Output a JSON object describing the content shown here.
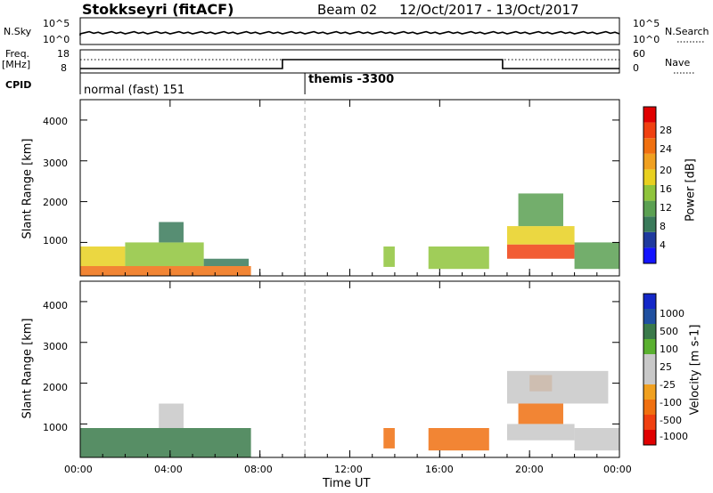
{
  "header": {
    "station": "Stokkseyri (fitACF)",
    "beam": "Beam 02",
    "date_range": "12/Oct/2017 - 13/Oct/2017"
  },
  "strip": {
    "nsky_label": "N.Sky",
    "nsky_ticks": [
      "10^5",
      "10^0"
    ],
    "nsearch_label": "N.Search",
    "nsearch_ticks": [
      "10^5",
      "10^0"
    ],
    "freq_label": "Freq.",
    "freq_unit": "[MHz]",
    "freq_ticks": [
      "18",
      "8"
    ],
    "nave_label": "Nave",
    "nave_ticks": [
      "60",
      "0"
    ],
    "cpid_label": "CPID",
    "cpid_segments": [
      {
        "label": "normal (fast) 151",
        "start_h": 0,
        "end_h": 10
      },
      {
        "label": "themis -3300",
        "start_h": 10,
        "end_h": 24
      }
    ]
  },
  "colors": {
    "power_scale": [
      "#1414ff",
      "#1f3a9e",
      "#3a7a5a",
      "#5ba052",
      "#8fc43c",
      "#e8d020",
      "#f0a020",
      "#f07010",
      "#f04010",
      "#e00000"
    ],
    "velocity_scale": [
      "#e00000",
      "#f04010",
      "#f07010",
      "#f0a020",
      "#c8c8c8",
      "#c8c8c8",
      "#5ab030",
      "#3a7a4a",
      "#2050a0",
      "#1428c8"
    ]
  },
  "chart_data": [
    {
      "type": "heatmap",
      "name": "power",
      "ylabel": "Slant Range [km]",
      "xlabel": "",
      "y_ticks": [
        "1000",
        "2000",
        "3000",
        "4000"
      ],
      "ylim": [
        180,
        4500
      ],
      "colorbar_label": "Power [dB]",
      "colorbar_ticks": [
        "4",
        "8",
        "12",
        "16",
        "20",
        "24",
        "28"
      ],
      "colorbar_range": [
        0,
        30
      ],
      "events": [
        {
          "t0": 0.0,
          "t1": 7.6,
          "r0": 180,
          "r1": 420,
          "v": 24
        },
        {
          "t0": 0.0,
          "t1": 2.0,
          "r0": 420,
          "r1": 900,
          "v": 18
        },
        {
          "t0": 2.0,
          "t1": 5.5,
          "r0": 420,
          "r1": 1000,
          "v": 14
        },
        {
          "t0": 3.5,
          "t1": 4.6,
          "r0": 1000,
          "r1": 1500,
          "v": 8
        },
        {
          "t0": 5.5,
          "t1": 7.5,
          "r0": 420,
          "r1": 600,
          "v": 8
        },
        {
          "t0": 13.5,
          "t1": 14.0,
          "r0": 400,
          "r1": 900,
          "v": 12
        },
        {
          "t0": 15.5,
          "t1": 18.2,
          "r0": 350,
          "r1": 900,
          "v": 14
        },
        {
          "t0": 19.0,
          "t1": 22.0,
          "r0": 600,
          "r1": 950,
          "v": 28
        },
        {
          "t0": 19.0,
          "t1": 22.0,
          "r0": 950,
          "r1": 1400,
          "v": 18
        },
        {
          "t0": 19.5,
          "t1": 21.5,
          "r0": 1400,
          "r1": 2200,
          "v": 10
        },
        {
          "t0": 22.0,
          "t1": 24.0,
          "r0": 350,
          "r1": 1000,
          "v": 10
        }
      ]
    },
    {
      "type": "heatmap",
      "name": "velocity",
      "ylabel": "Slant Range [km]",
      "xlabel": "Time UT",
      "x_ticks": [
        "00:00",
        "04:00",
        "08:00",
        "12:00",
        "16:00",
        "20:00",
        "00:00"
      ],
      "y_ticks": [
        "1000",
        "2000",
        "3000",
        "4000"
      ],
      "ylim": [
        180,
        4500
      ],
      "colorbar_label": "Velocity [m s-1]",
      "colorbar_ticks": [
        "1000",
        "500",
        "100",
        "25",
        "-25",
        "-100",
        "-500",
        "-1000"
      ],
      "events": [
        {
          "t0": 0.0,
          "t1": 7.6,
          "r0": 180,
          "r1": 900,
          "v": 100
        },
        {
          "t0": 3.5,
          "t1": 4.6,
          "r0": 900,
          "r1": 1500,
          "v": 0
        },
        {
          "t0": 13.5,
          "t1": 14.0,
          "r0": 400,
          "r1": 900,
          "v": -100
        },
        {
          "t0": 15.5,
          "t1": 18.2,
          "r0": 350,
          "r1": 900,
          "v": -100
        },
        {
          "t0": 19.0,
          "t1": 22.0,
          "r0": 600,
          "r1": 1000,
          "v": 0
        },
        {
          "t0": 19.5,
          "t1": 21.5,
          "r0": 1000,
          "r1": 1500,
          "v": -100
        },
        {
          "t0": 20.0,
          "t1": 21.0,
          "r0": 1800,
          "r1": 2200,
          "v": -100
        },
        {
          "t0": 19.0,
          "t1": 23.5,
          "r0": 1500,
          "r1": 2300,
          "v": 0
        },
        {
          "t0": 22.0,
          "t1": 24.0,
          "r0": 350,
          "r1": 900,
          "v": 0
        }
      ]
    }
  ]
}
